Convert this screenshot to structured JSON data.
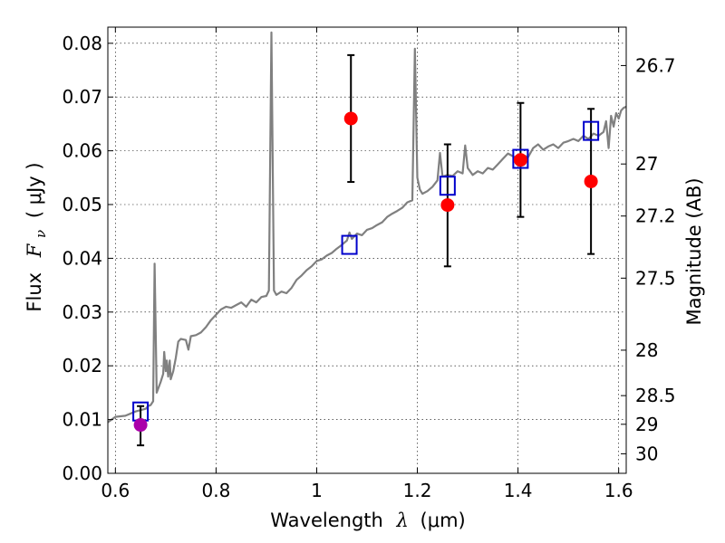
{
  "chart_data": {
    "type": "scatter",
    "xlabel": "Wavelength",
    "xlabel_symbol": "λ",
    "xlabel_unit": "(μm)",
    "ylabel": "Flux",
    "ylabel_symbol": "F",
    "ylabel_subscript": "ν",
    "ylabel_unit": "( μJy )",
    "y2label": "Magnitude (AB)",
    "xlim": [
      0.585,
      1.615
    ],
    "ylim": [
      0.0,
      0.083
    ],
    "grid": true,
    "x_ticks": [
      {
        "value": 0.6,
        "label": "0.6"
      },
      {
        "value": 0.8,
        "label": "0.8"
      },
      {
        "value": 1.0,
        "label": "1"
      },
      {
        "value": 1.2,
        "label": "1.2"
      },
      {
        "value": 1.4,
        "label": "1.4"
      },
      {
        "value": 1.6,
        "label": "1.6"
      }
    ],
    "y_ticks": [
      {
        "value": 0.0,
        "label": "0.00"
      },
      {
        "value": 0.01,
        "label": "0.01"
      },
      {
        "value": 0.02,
        "label": "0.02"
      },
      {
        "value": 0.03,
        "label": "0.03"
      },
      {
        "value": 0.04,
        "label": "0.04"
      },
      {
        "value": 0.05,
        "label": "0.05"
      },
      {
        "value": 0.06,
        "label": "0.06"
      },
      {
        "value": 0.07,
        "label": "0.07"
      },
      {
        "value": 0.08,
        "label": "0.08"
      }
    ],
    "y2_ticks": [
      {
        "magnitude": 26.7,
        "label": "26.7"
      },
      {
        "magnitude": 27.0,
        "label": "27"
      },
      {
        "magnitude": 27.2,
        "label": "27.2"
      },
      {
        "magnitude": 27.5,
        "label": "27.5"
      },
      {
        "magnitude": 28.0,
        "label": "28"
      },
      {
        "magnitude": 28.5,
        "label": "28.5"
      },
      {
        "magnitude": 29.0,
        "label": "29"
      },
      {
        "magnitude": 30.0,
        "label": "30"
      }
    ],
    "series": [
      {
        "kind": "line",
        "color": "#808080",
        "points": [
          [
            0.585,
            0.0095
          ],
          [
            0.6,
            0.0105
          ],
          [
            0.62,
            0.0107
          ],
          [
            0.64,
            0.0115
          ],
          [
            0.66,
            0.012
          ],
          [
            0.665,
            0.0125
          ],
          [
            0.67,
            0.0127
          ],
          [
            0.675,
            0.0134
          ],
          [
            0.678,
            0.039
          ],
          [
            0.682,
            0.015
          ],
          [
            0.69,
            0.017
          ],
          [
            0.695,
            0.0185
          ],
          [
            0.697,
            0.0226
          ],
          [
            0.7,
            0.019
          ],
          [
            0.702,
            0.021
          ],
          [
            0.705,
            0.018
          ],
          [
            0.708,
            0.021
          ],
          [
            0.71,
            0.0175
          ],
          [
            0.715,
            0.019
          ],
          [
            0.72,
            0.0215
          ],
          [
            0.725,
            0.0245
          ],
          [
            0.73,
            0.025
          ],
          [
            0.74,
            0.0248
          ],
          [
            0.745,
            0.023
          ],
          [
            0.75,
            0.0255
          ],
          [
            0.76,
            0.0257
          ],
          [
            0.77,
            0.0262
          ],
          [
            0.78,
            0.0272
          ],
          [
            0.79,
            0.0285
          ],
          [
            0.8,
            0.0295
          ],
          [
            0.81,
            0.0305
          ],
          [
            0.82,
            0.031
          ],
          [
            0.83,
            0.0308
          ],
          [
            0.84,
            0.0313
          ],
          [
            0.85,
            0.0318
          ],
          [
            0.86,
            0.031
          ],
          [
            0.87,
            0.0323
          ],
          [
            0.88,
            0.0318
          ],
          [
            0.89,
            0.0328
          ],
          [
            0.9,
            0.033
          ],
          [
            0.905,
            0.034
          ],
          [
            0.91,
            0.082
          ],
          [
            0.915,
            0.034
          ],
          [
            0.92,
            0.0332
          ],
          [
            0.93,
            0.0338
          ],
          [
            0.94,
            0.0335
          ],
          [
            0.95,
            0.0345
          ],
          [
            0.96,
            0.036
          ],
          [
            0.97,
            0.0368
          ],
          [
            0.98,
            0.0378
          ],
          [
            0.99,
            0.0385
          ],
          [
            1.0,
            0.0395
          ],
          [
            1.01,
            0.0398
          ],
          [
            1.02,
            0.0405
          ],
          [
            1.03,
            0.041
          ],
          [
            1.04,
            0.0418
          ],
          [
            1.05,
            0.0425
          ],
          [
            1.06,
            0.0433
          ],
          [
            1.065,
            0.0448
          ],
          [
            1.07,
            0.0436
          ],
          [
            1.08,
            0.0446
          ],
          [
            1.09,
            0.0443
          ],
          [
            1.1,
            0.0453
          ],
          [
            1.11,
            0.0456
          ],
          [
            1.12,
            0.0462
          ],
          [
            1.13,
            0.0467
          ],
          [
            1.14,
            0.0477
          ],
          [
            1.15,
            0.0483
          ],
          [
            1.16,
            0.0488
          ],
          [
            1.17,
            0.0494
          ],
          [
            1.18,
            0.0504
          ],
          [
            1.19,
            0.0508
          ],
          [
            1.195,
            0.079
          ],
          [
            1.2,
            0.055
          ],
          [
            1.205,
            0.0528
          ],
          [
            1.21,
            0.052
          ],
          [
            1.22,
            0.0525
          ],
          [
            1.23,
            0.0533
          ],
          [
            1.24,
            0.0545
          ],
          [
            1.245,
            0.0596
          ],
          [
            1.25,
            0.0552
          ],
          [
            1.26,
            0.0555
          ],
          [
            1.27,
            0.0553
          ],
          [
            1.28,
            0.0562
          ],
          [
            1.29,
            0.0558
          ],
          [
            1.295,
            0.061
          ],
          [
            1.3,
            0.0568
          ],
          [
            1.31,
            0.0555
          ],
          [
            1.32,
            0.0562
          ],
          [
            1.33,
            0.0558
          ],
          [
            1.34,
            0.0568
          ],
          [
            1.35,
            0.0565
          ],
          [
            1.36,
            0.0575
          ],
          [
            1.37,
            0.0585
          ],
          [
            1.38,
            0.0595
          ],
          [
            1.39,
            0.059
          ],
          [
            1.4,
            0.0585
          ],
          [
            1.41,
            0.0592
          ],
          [
            1.42,
            0.0588
          ],
          [
            1.43,
            0.0605
          ],
          [
            1.44,
            0.0612
          ],
          [
            1.45,
            0.0602
          ],
          [
            1.46,
            0.0608
          ],
          [
            1.47,
            0.0612
          ],
          [
            1.48,
            0.0605
          ],
          [
            1.49,
            0.0615
          ],
          [
            1.5,
            0.0618
          ],
          [
            1.51,
            0.0622
          ],
          [
            1.52,
            0.0618
          ],
          [
            1.53,
            0.0628
          ],
          [
            1.54,
            0.0622
          ],
          [
            1.55,
            0.0632
          ],
          [
            1.56,
            0.0628
          ],
          [
            1.57,
            0.0635
          ],
          [
            1.575,
            0.0655
          ],
          [
            1.58,
            0.0605
          ],
          [
            1.585,
            0.0665
          ],
          [
            1.59,
            0.0645
          ],
          [
            1.595,
            0.067
          ],
          [
            1.6,
            0.066
          ],
          [
            1.605,
            0.0675
          ],
          [
            1.61,
            0.068
          ],
          [
            1.615,
            0.0682
          ]
        ]
      },
      {
        "kind": "open-square",
        "color": "#0000cc",
        "points": [
          [
            0.65,
            0.0115
          ],
          [
            1.065,
            0.0425
          ],
          [
            1.26,
            0.0535
          ],
          [
            1.405,
            0.0585
          ],
          [
            1.545,
            0.0637
          ]
        ]
      },
      {
        "kind": "filled-circle",
        "color": "#ff0000",
        "points": [
          {
            "x": 1.068,
            "y": 0.066,
            "yerr_low": 0.0542,
            "yerr_high": 0.0778
          },
          {
            "x": 1.26,
            "y": 0.0499,
            "yerr_low": 0.0385,
            "yerr_high": 0.0612
          },
          {
            "x": 1.405,
            "y": 0.0583,
            "yerr_low": 0.0477,
            "yerr_high": 0.0689
          },
          {
            "x": 1.545,
            "y": 0.0543,
            "yerr_low": 0.0408,
            "yerr_high": 0.0678
          }
        ]
      },
      {
        "kind": "filled-circle",
        "color": "#aa00aa",
        "points": [
          {
            "x": 0.65,
            "y": 0.009,
            "yerr_low": 0.0052,
            "yerr_high": 0.0125
          }
        ]
      }
    ]
  }
}
